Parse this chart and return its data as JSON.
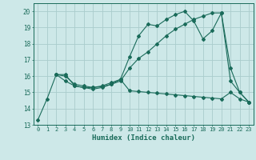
{
  "title": "",
  "xlabel": "Humidex (Indice chaleur)",
  "background_color": "#cde8e8",
  "grid_color": "#aacccc",
  "line_color": "#1a6b5a",
  "ylim": [
    13,
    20.5
  ],
  "xlim": [
    -0.5,
    23.5
  ],
  "yticks": [
    13,
    14,
    15,
    16,
    17,
    18,
    19,
    20
  ],
  "xticks": [
    0,
    1,
    2,
    3,
    4,
    5,
    6,
    7,
    8,
    9,
    10,
    11,
    12,
    13,
    14,
    15,
    16,
    17,
    18,
    19,
    20,
    21,
    22,
    23
  ],
  "line1_x": [
    0,
    1,
    2,
    3,
    4,
    5,
    6,
    7,
    8,
    9,
    10,
    11,
    12,
    13,
    14,
    15,
    16,
    17,
    18,
    19,
    20,
    21,
    22,
    23
  ],
  "line1_y": [
    13.3,
    14.6,
    16.1,
    15.7,
    15.4,
    15.3,
    15.2,
    15.3,
    15.5,
    15.8,
    15.1,
    15.05,
    15.0,
    14.95,
    14.9,
    14.85,
    14.8,
    14.75,
    14.7,
    14.65,
    14.6,
    15.0,
    14.6,
    14.4
  ],
  "line2_x": [
    2,
    3,
    4,
    5,
    6,
    7,
    8,
    9,
    10,
    11,
    12,
    13,
    14,
    15,
    16,
    17,
    18,
    19,
    20,
    21,
    22,
    23
  ],
  "line2_y": [
    16.1,
    16.0,
    15.5,
    15.4,
    15.3,
    15.35,
    15.5,
    15.7,
    16.5,
    17.1,
    17.5,
    18.0,
    18.5,
    18.9,
    19.2,
    19.5,
    19.7,
    19.9,
    19.9,
    16.5,
    15.0,
    14.4
  ],
  "line3_x": [
    2,
    3,
    4,
    5,
    6,
    7,
    8,
    9,
    10,
    11,
    12,
    13,
    14,
    15,
    16,
    17,
    18,
    19,
    20,
    21,
    22,
    23
  ],
  "line3_y": [
    16.1,
    16.1,
    15.4,
    15.3,
    15.3,
    15.4,
    15.6,
    15.8,
    17.2,
    18.5,
    19.2,
    19.1,
    19.5,
    19.8,
    20.0,
    19.4,
    18.3,
    18.8,
    19.9,
    15.7,
    15.0,
    14.4
  ]
}
